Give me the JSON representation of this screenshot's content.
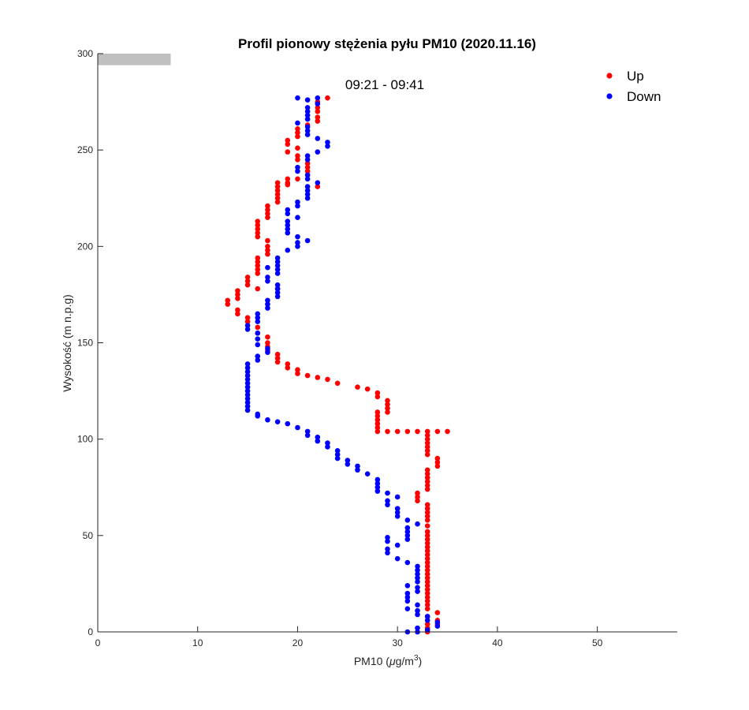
{
  "chart_data": {
    "type": "scatter",
    "title": "Profil pionowy stężenia pyłu PM10 (2020.11.16)",
    "xlabel_main": "PM10 (",
    "xlabel_mu": "μ",
    "xlabel_unit": "g/m",
    "xlabel_sup": "3",
    "xlabel_close": ")",
    "ylabel": "Wysokość (m n.p.g)",
    "annotation": "09:21 - 09:41",
    "xlim": [
      0,
      58
    ],
    "ylim": [
      0,
      300
    ],
    "xticks": [
      "0",
      "10",
      "20",
      "30",
      "40",
      "50"
    ],
    "yticks": [
      "0",
      "50",
      "100",
      "150",
      "200",
      "250",
      "300"
    ],
    "legend_position": "top-right",
    "ground_marker": {
      "x_from": 0,
      "x_to": 7.3,
      "y_from": 294,
      "y_to": 300,
      "color": "#c0c0c0"
    },
    "series": [
      {
        "name": "Up",
        "color": "#ff0000",
        "points": [
          [
            33,
            0
          ],
          [
            33,
            2
          ],
          [
            33,
            4
          ],
          [
            34,
            4
          ],
          [
            34,
            6
          ],
          [
            33,
            8
          ],
          [
            34,
            10
          ],
          [
            33,
            12
          ],
          [
            33,
            14
          ],
          [
            33,
            16
          ],
          [
            33,
            18
          ],
          [
            33,
            20
          ],
          [
            33,
            22
          ],
          [
            33,
            24
          ],
          [
            33,
            26
          ],
          [
            33,
            28
          ],
          [
            33,
            30
          ],
          [
            33,
            32
          ],
          [
            33,
            34
          ],
          [
            33,
            36
          ],
          [
            33,
            38
          ],
          [
            33,
            40
          ],
          [
            33,
            42
          ],
          [
            33,
            44
          ],
          [
            33,
            46
          ],
          [
            33,
            48
          ],
          [
            33,
            50
          ],
          [
            33,
            52
          ],
          [
            33,
            55
          ],
          [
            33,
            58
          ],
          [
            33,
            60
          ],
          [
            33,
            62
          ],
          [
            33,
            64
          ],
          [
            33,
            66
          ],
          [
            32,
            68
          ],
          [
            32,
            70
          ],
          [
            32,
            72
          ],
          [
            33,
            74
          ],
          [
            33,
            76
          ],
          [
            33,
            78
          ],
          [
            33,
            80
          ],
          [
            33,
            82
          ],
          [
            33,
            84
          ],
          [
            34,
            86
          ],
          [
            34,
            88
          ],
          [
            34,
            90
          ],
          [
            33,
            92
          ],
          [
            33,
            94
          ],
          [
            33,
            96
          ],
          [
            33,
            98
          ],
          [
            33,
            100
          ],
          [
            33,
            102
          ],
          [
            33,
            104
          ],
          [
            34,
            104
          ],
          [
            35,
            104
          ],
          [
            32,
            104
          ],
          [
            31,
            104
          ],
          [
            30,
            104
          ],
          [
            29,
            104
          ],
          [
            28,
            104
          ],
          [
            28,
            106
          ],
          [
            28,
            108
          ],
          [
            28,
            110
          ],
          [
            28,
            112
          ],
          [
            28,
            114
          ],
          [
            29,
            114
          ],
          [
            29,
            116
          ],
          [
            29,
            118
          ],
          [
            29,
            120
          ],
          [
            28,
            122
          ],
          [
            28,
            124
          ],
          [
            27,
            126
          ],
          [
            26,
            127
          ],
          [
            24,
            129
          ],
          [
            23,
            131
          ],
          [
            22,
            132
          ],
          [
            21,
            133
          ],
          [
            20,
            134
          ],
          [
            20,
            136
          ],
          [
            19,
            137
          ],
          [
            19,
            139
          ],
          [
            18,
            140
          ],
          [
            18,
            142
          ],
          [
            18,
            144
          ],
          [
            17,
            146
          ],
          [
            17,
            148
          ],
          [
            17,
            150
          ],
          [
            17,
            153
          ],
          [
            16,
            155
          ],
          [
            16,
            158
          ],
          [
            15,
            161
          ],
          [
            15,
            163
          ],
          [
            14,
            165
          ],
          [
            14,
            167
          ],
          [
            13,
            170
          ],
          [
            13,
            172
          ],
          [
            14,
            173
          ],
          [
            14,
            175
          ],
          [
            14,
            177
          ],
          [
            16,
            178
          ],
          [
            18,
            178
          ],
          [
            15,
            180
          ],
          [
            15,
            182
          ],
          [
            15,
            184
          ],
          [
            16,
            186
          ],
          [
            16,
            188
          ],
          [
            16,
            190
          ],
          [
            16,
            192
          ],
          [
            16,
            194
          ],
          [
            17,
            196
          ],
          [
            17,
            198
          ],
          [
            17,
            200
          ],
          [
            17,
            203
          ],
          [
            16,
            205
          ],
          [
            16,
            207
          ],
          [
            16,
            209
          ],
          [
            16,
            211
          ],
          [
            16,
            213
          ],
          [
            17,
            215
          ],
          [
            17,
            217
          ],
          [
            17,
            219
          ],
          [
            17,
            221
          ],
          [
            18,
            223
          ],
          [
            18,
            225
          ],
          [
            18,
            227
          ],
          [
            18,
            229
          ],
          [
            18,
            231
          ],
          [
            18,
            233
          ],
          [
            19,
            233
          ],
          [
            19,
            235
          ],
          [
            20,
            235
          ],
          [
            21,
            237
          ],
          [
            21,
            239
          ],
          [
            21,
            241
          ],
          [
            21,
            243
          ],
          [
            20,
            245
          ],
          [
            20,
            247
          ],
          [
            19,
            249
          ],
          [
            20,
            251
          ],
          [
            19,
            253
          ],
          [
            19,
            255
          ],
          [
            20,
            257
          ],
          [
            20,
            259
          ],
          [
            20,
            261
          ],
          [
            21,
            263
          ],
          [
            22,
            265
          ],
          [
            22,
            267
          ],
          [
            22,
            270
          ],
          [
            22,
            272
          ],
          [
            22,
            275
          ],
          [
            23,
            277
          ],
          [
            22,
            231
          ],
          [
            19,
            232
          ]
        ]
      },
      {
        "name": "Down",
        "color": "#0000ff",
        "points": [
          [
            31,
            0
          ],
          [
            32,
            0
          ],
          [
            33,
            1
          ],
          [
            32,
            2
          ],
          [
            34,
            3
          ],
          [
            34,
            5
          ],
          [
            33,
            6
          ],
          [
            33,
            8
          ],
          [
            32,
            9
          ],
          [
            32,
            11
          ],
          [
            31,
            12
          ],
          [
            32,
            14
          ],
          [
            31,
            16
          ],
          [
            31,
            18
          ],
          [
            31,
            20
          ],
          [
            32,
            21
          ],
          [
            32,
            23
          ],
          [
            31,
            24
          ],
          [
            32,
            26
          ],
          [
            32,
            28
          ],
          [
            32,
            30
          ],
          [
            32,
            32
          ],
          [
            32,
            34
          ],
          [
            31,
            36
          ],
          [
            30,
            38
          ],
          [
            29,
            41
          ],
          [
            29,
            43
          ],
          [
            30,
            45
          ],
          [
            29,
            47
          ],
          [
            29,
            49
          ],
          [
            31,
            48
          ],
          [
            31,
            50
          ],
          [
            31,
            52
          ],
          [
            31,
            54
          ],
          [
            32,
            56
          ],
          [
            31,
            58
          ],
          [
            30,
            60
          ],
          [
            30,
            62
          ],
          [
            30,
            64
          ],
          [
            29,
            66
          ],
          [
            29,
            68
          ],
          [
            30,
            70
          ],
          [
            29,
            72
          ],
          [
            28,
            73
          ],
          [
            28,
            75
          ],
          [
            28,
            77
          ],
          [
            28,
            79
          ],
          [
            27,
            82
          ],
          [
            26,
            84
          ],
          [
            26,
            86
          ],
          [
            25,
            87
          ],
          [
            25,
            89
          ],
          [
            24,
            90
          ],
          [
            24,
            92
          ],
          [
            24,
            94
          ],
          [
            23,
            96
          ],
          [
            23,
            98
          ],
          [
            22,
            99
          ],
          [
            22,
            101
          ],
          [
            21,
            102
          ],
          [
            21,
            104
          ],
          [
            20,
            106
          ],
          [
            19,
            108
          ],
          [
            18,
            109
          ],
          [
            17,
            110
          ],
          [
            16,
            112
          ],
          [
            16,
            113
          ],
          [
            15,
            115
          ],
          [
            15,
            117
          ],
          [
            15,
            119
          ],
          [
            15,
            121
          ],
          [
            15,
            123
          ],
          [
            15,
            125
          ],
          [
            15,
            127
          ],
          [
            15,
            129
          ],
          [
            15,
            131
          ],
          [
            15,
            133
          ],
          [
            15,
            135
          ],
          [
            15,
            137
          ],
          [
            15,
            139
          ],
          [
            16,
            141
          ],
          [
            16,
            143
          ],
          [
            17,
            145
          ],
          [
            17,
            147
          ],
          [
            16,
            149
          ],
          [
            16,
            152
          ],
          [
            16,
            155
          ],
          [
            15,
            157
          ],
          [
            15,
            159
          ],
          [
            16,
            161
          ],
          [
            16,
            163
          ],
          [
            16,
            165
          ],
          [
            17,
            168
          ],
          [
            17,
            170
          ],
          [
            17,
            172
          ],
          [
            18,
            174
          ],
          [
            18,
            176
          ],
          [
            18,
            178
          ],
          [
            18,
            180
          ],
          [
            17,
            182
          ],
          [
            17,
            184
          ],
          [
            18,
            186
          ],
          [
            18,
            188
          ],
          [
            17,
            189
          ],
          [
            18,
            190
          ],
          [
            18,
            192
          ],
          [
            18,
            194
          ],
          [
            19,
            198
          ],
          [
            20,
            200
          ],
          [
            20,
            202
          ],
          [
            21,
            203
          ],
          [
            20,
            205
          ],
          [
            19,
            207
          ],
          [
            19,
            209
          ],
          [
            19,
            211
          ],
          [
            19,
            213
          ],
          [
            20,
            215
          ],
          [
            19,
            217
          ],
          [
            19,
            219
          ],
          [
            20,
            221
          ],
          [
            20,
            223
          ],
          [
            21,
            225
          ],
          [
            21,
            227
          ],
          [
            21,
            229
          ],
          [
            21,
            231
          ],
          [
            22,
            233
          ],
          [
            21,
            235
          ],
          [
            21,
            237
          ],
          [
            20,
            239
          ],
          [
            20,
            241
          ],
          [
            21,
            245
          ],
          [
            21,
            247
          ],
          [
            22,
            249
          ],
          [
            23,
            252
          ],
          [
            23,
            254
          ],
          [
            22,
            256
          ],
          [
            21,
            258
          ],
          [
            21,
            260
          ],
          [
            21,
            262
          ],
          [
            20,
            264
          ],
          [
            21,
            266
          ],
          [
            21,
            268
          ],
          [
            21,
            270
          ],
          [
            21,
            272
          ],
          [
            22,
            274
          ],
          [
            21,
            276
          ],
          [
            20,
            277
          ],
          [
            22,
            277
          ]
        ]
      }
    ]
  }
}
